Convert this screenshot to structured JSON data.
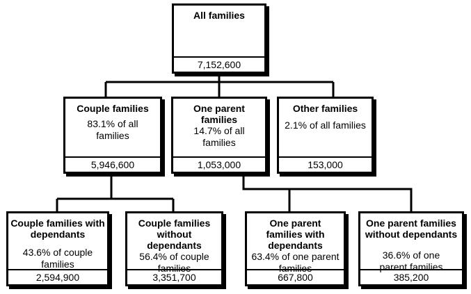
{
  "root": {
    "title": "All families",
    "value": "7,152,600"
  },
  "level1": [
    {
      "title": "Couple families",
      "share": "83.1% of all families",
      "value": "5,946,600"
    },
    {
      "title": "One parent families",
      "share": "14.7% of all families",
      "value": "1,053,000"
    },
    {
      "title": "Other families",
      "share": "2.1% of all families",
      "value": "153,000"
    }
  ],
  "level2": [
    {
      "title": "Couple families with dependants",
      "share": "43.6% of couple families",
      "value": "2,594,900"
    },
    {
      "title": "Couple families without dependants",
      "share": "56.4% of couple families",
      "value": "3,351,700"
    },
    {
      "title": "One parent families with dependants",
      "share": "63.4% of one parent families",
      "value": "667,800"
    },
    {
      "title": "One parent families without dependants",
      "share": "36.6% of one parent families",
      "value": "385,200"
    }
  ]
}
